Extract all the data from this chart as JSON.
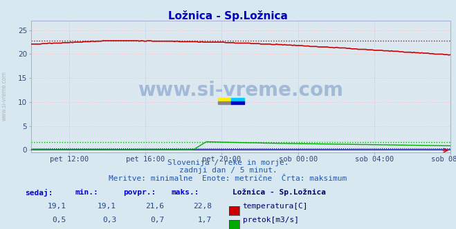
{
  "title": "Ložnica - Sp.Ložnica",
  "title_color": "#0000bb",
  "bg_color": "#d8e8f0",
  "plot_bg_color": "#dce8f0",
  "grid_color_h": "#ffbbbb",
  "grid_color_v": "#bbbbdd",
  "watermark_text": "www.si-vreme.com",
  "watermark_color": "#1e4fa0",
  "subtitle1": "Slovenija / reke in morje.",
  "subtitle2": "zadnji dan / 5 minut.",
  "subtitle3": "Meritve: minimalne  Enote: metrične  Črta: maksimum",
  "subtitle_color": "#2255aa",
  "legend_title": "Ložnica - Sp.Ložnica",
  "legend_color": "#000066",
  "table_headers": [
    "sedaj:",
    "min.:",
    "povpr.:",
    "maks.:"
  ],
  "table_header_color": "#0000cc",
  "table_data_color": "#224488",
  "rows": [
    {
      "sedaj": "19,1",
      "min": "19,1",
      "povpr": "21,6",
      "maks": "22,8",
      "color": "#cc0000",
      "label": "temperatura[C]"
    },
    {
      "sedaj": "0,5",
      "min": "0,3",
      "povpr": "0,7",
      "maks": "1,7",
      "color": "#00aa00",
      "label": "pretok[m3/s]"
    }
  ],
  "ylim": [
    -0.5,
    27
  ],
  "yticks": [
    0,
    5,
    10,
    15,
    20,
    25
  ],
  "xtick_labels": [
    "pet 12:00",
    "pet 16:00",
    "pet 20:00",
    "sob 00:00",
    "sob 04:00",
    "sob 08:00"
  ],
  "xtick_positions": [
    2,
    6,
    10,
    14,
    18,
    22
  ],
  "xlim": [
    0,
    22
  ],
  "temp_max_line": 22.8,
  "flow_max_line": 1.7,
  "height_max_line": 0.28,
  "temp_color": "#cc0000",
  "flow_color": "#00aa00",
  "height_color": "#0000cc",
  "axis_label_color": "#334477",
  "axis_label_fontsize": 7.5,
  "left_label": "www.si-vreme.com",
  "left_label_color": "#aaaaaa",
  "logo_colors": [
    "#ffee00",
    "#00ccff",
    "#888888",
    "#0000cc"
  ]
}
